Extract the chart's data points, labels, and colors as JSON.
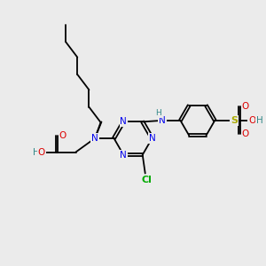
{
  "bg_color": "#ebebeb",
  "bond_color": "#000000",
  "N_color": "#0000ee",
  "O_color": "#dd0000",
  "Cl_color": "#00aa00",
  "S_color": "#aaaa00",
  "H_color": "#338888",
  "line_width": 1.3,
  "figsize": [
    3.0,
    3.0
  ],
  "dpi": 100,
  "xlim": [
    0,
    10
  ],
  "ylim": [
    0,
    10
  ]
}
